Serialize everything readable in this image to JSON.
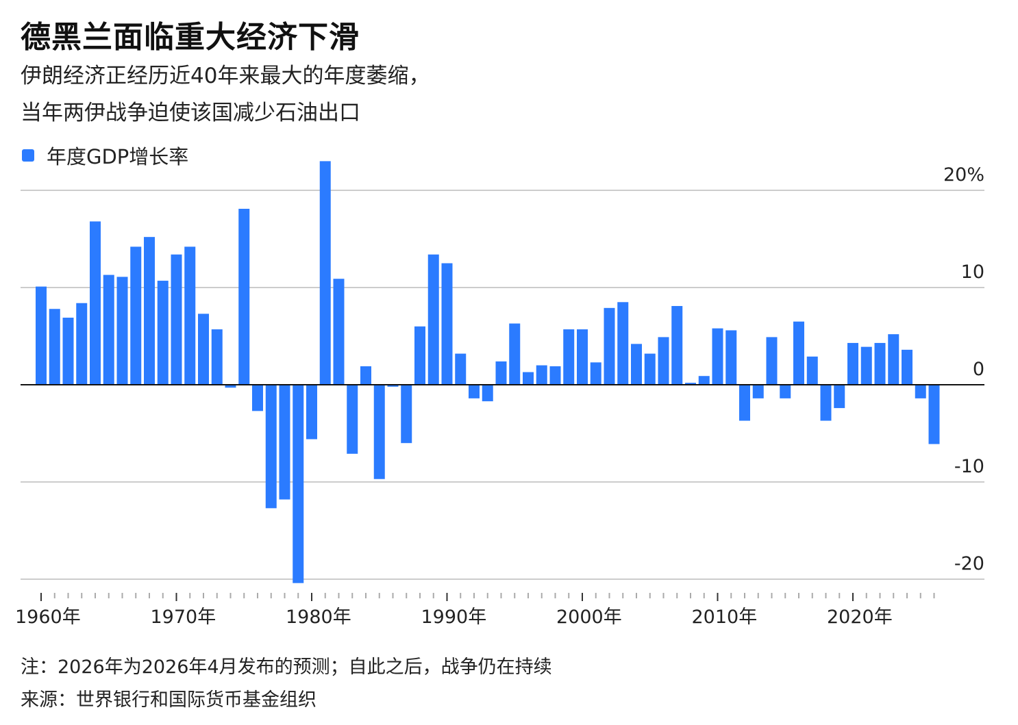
{
  "title": "德黑兰面临重大经济下滑",
  "subtitle_lines": [
    "伊朗经济正经历近40年来最大的年度萎缩，",
    "当年两伊战争迫使该国减少石油出口"
  ],
  "legend_label": "年度GDP增长率",
  "note": "注：2026年为2026年4月发布的预测；自此之后，战争仍在持续",
  "source": "来源：世界银行和国际货币基金组织",
  "colors": {
    "bar": "#2b7bff",
    "grid": "#cccccc",
    "zero_line": "#111111"
  },
  "chart_data": {
    "type": "bar",
    "title": "德黑兰面临重大经济下滑",
    "subtitle": "伊朗经济正经历近40年来最大的年度萎缩，当年两伊战争迫使该国减少石油出口",
    "series_name": "年度GDP增长率",
    "x_start_year": 1960,
    "years": [
      1960,
      1961,
      1962,
      1963,
      1964,
      1965,
      1966,
      1967,
      1968,
      1969,
      1970,
      1971,
      1972,
      1973,
      1974,
      1975,
      1976,
      1977,
      1978,
      1979,
      1980,
      1981,
      1982,
      1983,
      1984,
      1985,
      1986,
      1987,
      1988,
      1989,
      1990,
      1991,
      1992,
      1993,
      1994,
      1995,
      1996,
      1997,
      1998,
      1999,
      2000,
      2001,
      2002,
      2003,
      2004,
      2005,
      2006,
      2007,
      2008,
      2009,
      2010,
      2011,
      2012,
      2013,
      2014,
      2015,
      2016,
      2017,
      2018,
      2019,
      2020,
      2021,
      2022,
      2023,
      2024,
      2025,
      2026
    ],
    "values": [
      10.1,
      7.8,
      6.9,
      8.4,
      16.8,
      11.3,
      11.1,
      14.2,
      15.2,
      10.7,
      13.4,
      14.2,
      7.3,
      5.7,
      -0.3,
      18.1,
      -2.7,
      -12.7,
      -11.8,
      -20.4,
      -5.6,
      23.0,
      10.9,
      -7.1,
      1.9,
      -9.7,
      -0.2,
      -6.0,
      6.0,
      13.4,
      12.5,
      3.2,
      -1.4,
      -1.7,
      2.4,
      6.3,
      1.3,
      2.0,
      1.9,
      5.7,
      5.7,
      2.3,
      7.9,
      8.5,
      4.2,
      3.2,
      4.9,
      8.1,
      0.2,
      0.9,
      5.8,
      5.6,
      -3.7,
      -1.4,
      4.9,
      -1.4,
      6.5,
      2.9,
      -3.7,
      -2.4,
      4.3,
      3.9,
      4.3,
      5.2,
      3.6,
      -1.4,
      -6.1
    ],
    "y_ticks": [
      {
        "value": 20,
        "label": "20%"
      },
      {
        "value": 10,
        "label": "10"
      },
      {
        "value": 0,
        "label": "0"
      },
      {
        "value": -10,
        "label": "-10"
      },
      {
        "value": -20,
        "label": "-20"
      }
    ],
    "x_labels": [
      {
        "year": 1960,
        "label": "1960年"
      },
      {
        "year": 1970,
        "label": "1970年"
      },
      {
        "year": 1980,
        "label": "1980年"
      },
      {
        "year": 1990,
        "label": "1990年"
      },
      {
        "year": 2000,
        "label": "2000年"
      },
      {
        "year": 2010,
        "label": "2010年"
      },
      {
        "year": 2020,
        "label": "2020年"
      }
    ],
    "ylim": [
      -20.4,
      23.0
    ],
    "grid": true,
    "legend_position": "top-left"
  }
}
